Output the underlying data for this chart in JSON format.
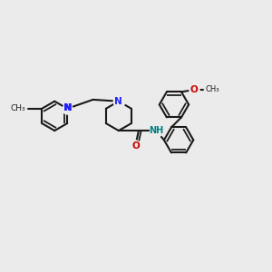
{
  "bg_color": "#ebebeb",
  "bond_color": "#1a1a1a",
  "N_color": "#2020ff",
  "O_color": "#cc0000",
  "NH_color": "#008080",
  "lw": 1.5,
  "fig_size": [
    3.0,
    3.0
  ],
  "dpi": 100,
  "xlim": [
    0,
    10
  ],
  "ylim": [
    0,
    10
  ]
}
